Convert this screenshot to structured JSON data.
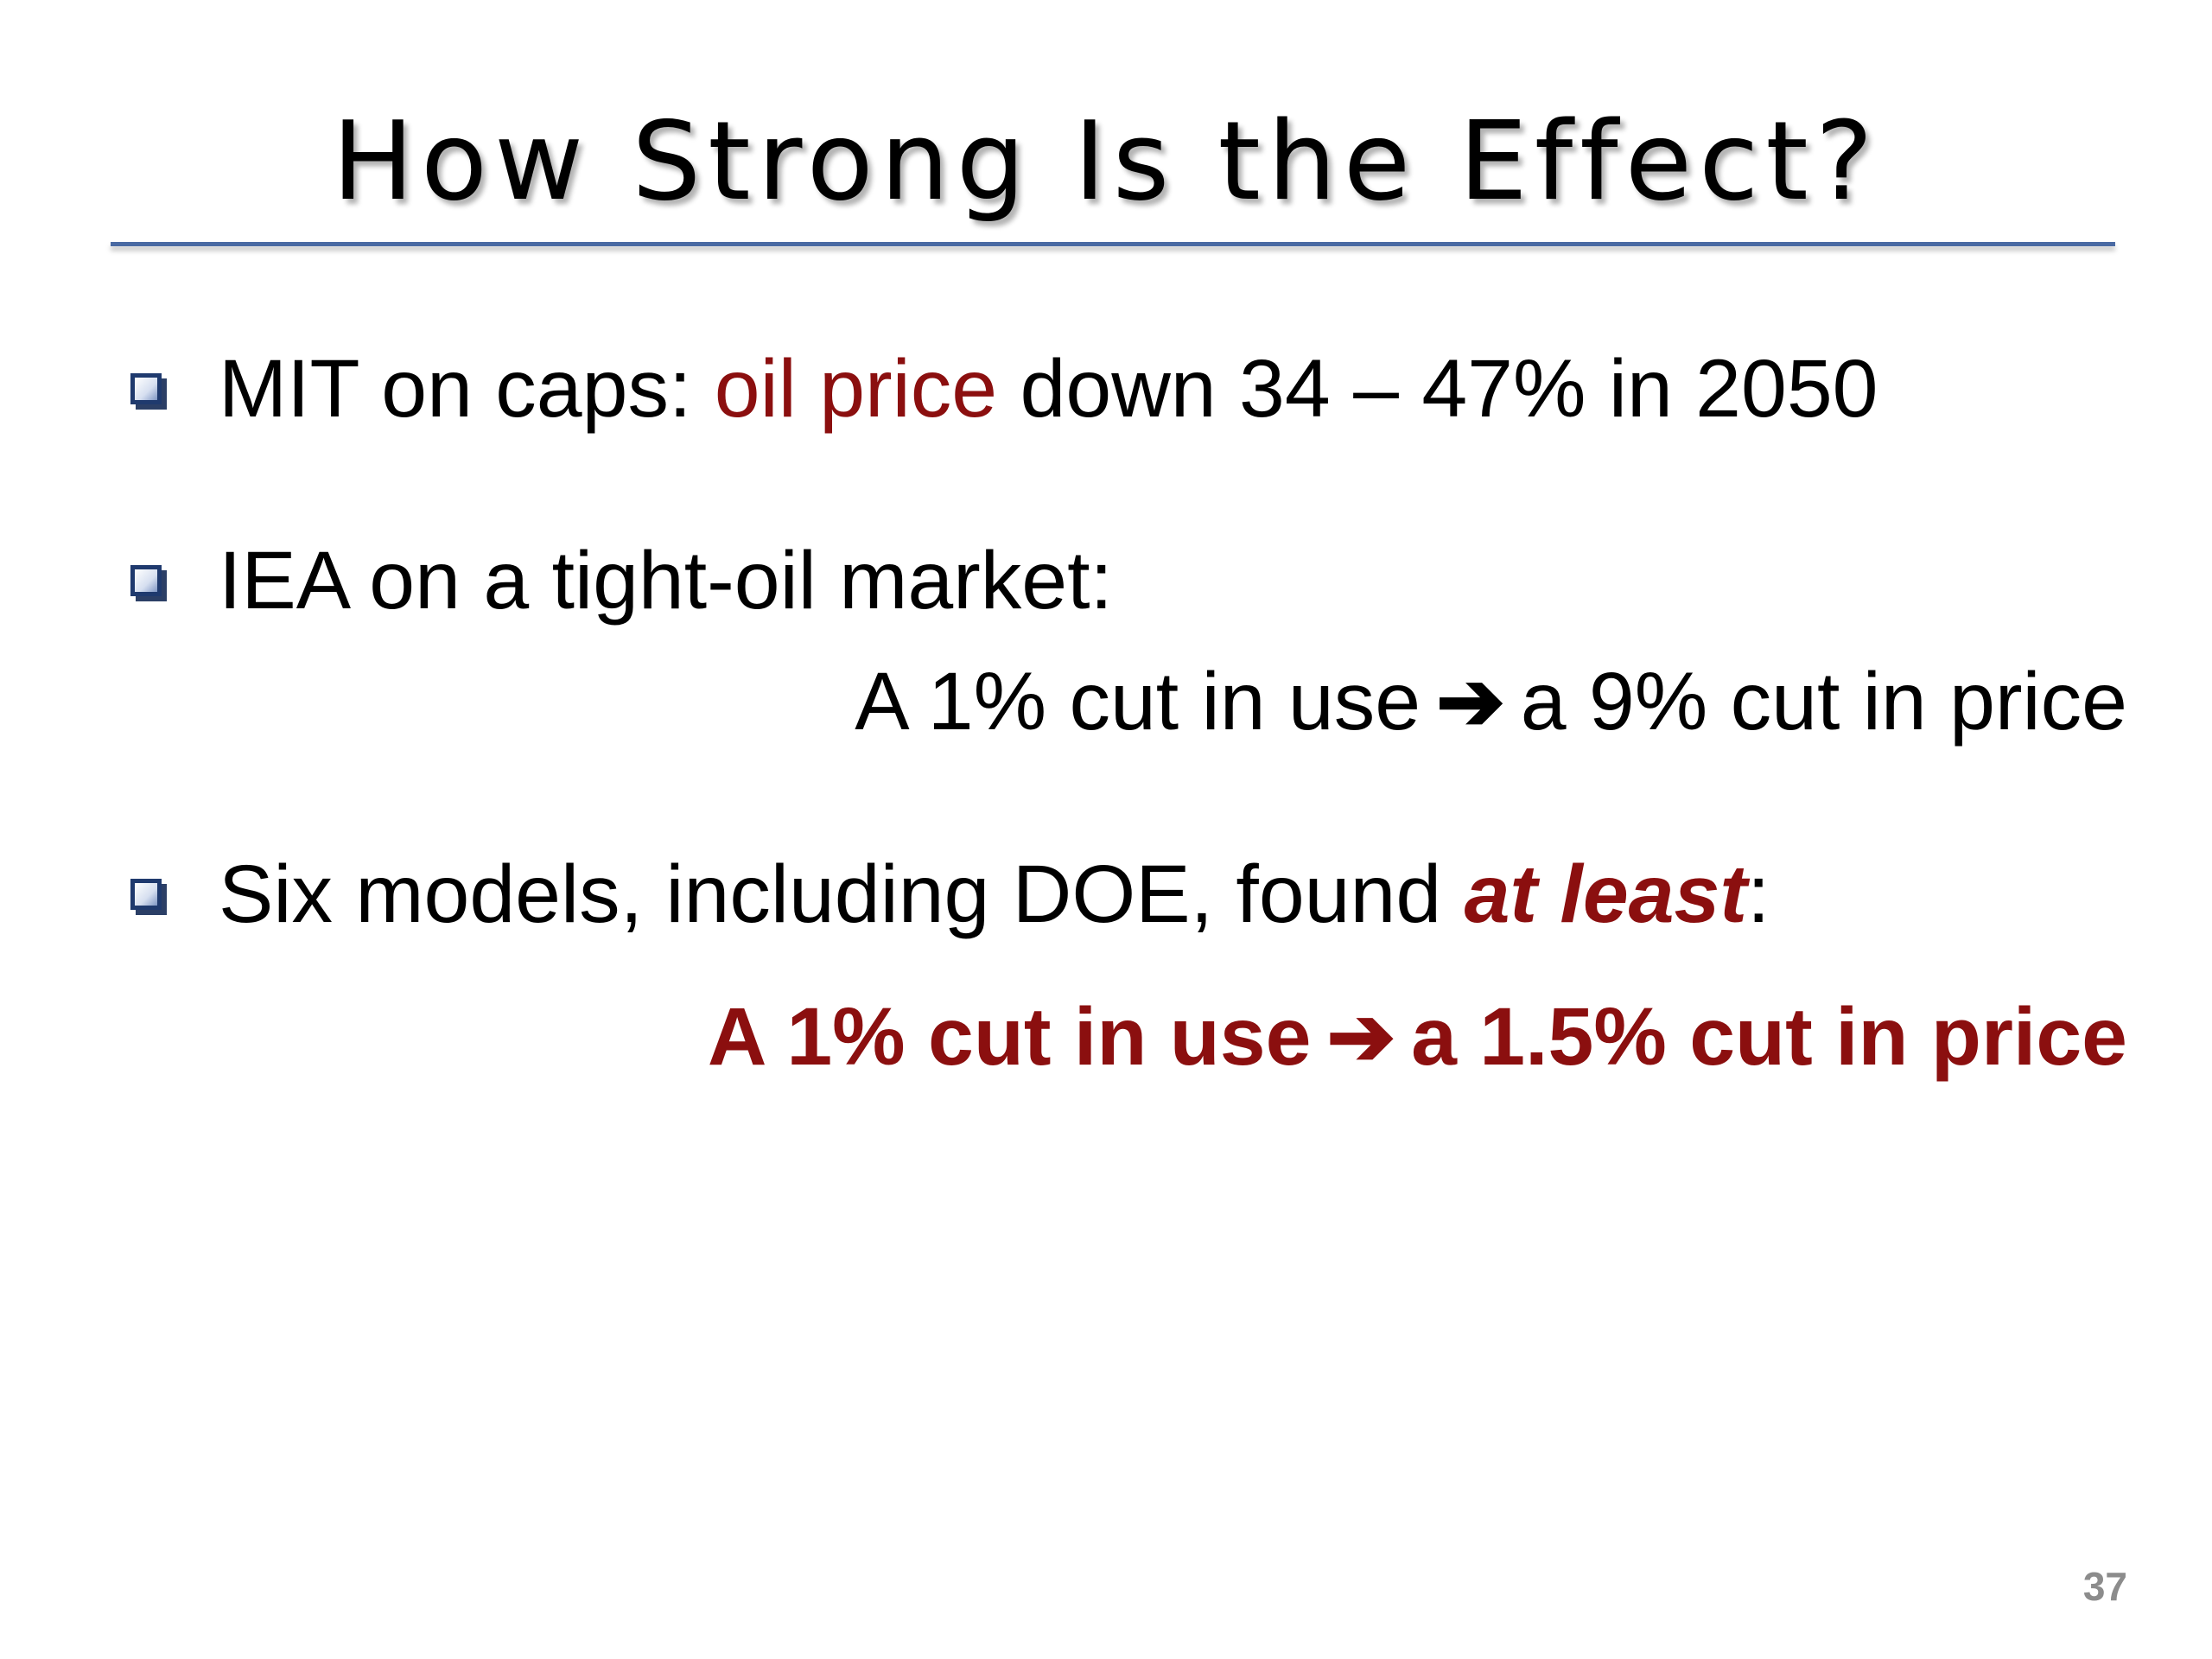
{
  "slide": {
    "title": "How Strong Is the Effect?",
    "bullets": [
      {
        "pre": "MIT on caps: ",
        "highlight": "oil price",
        "post": " down 34 – 47% in 2050"
      },
      {
        "text": "IEA on a tight-oil market:",
        "sub_left": "A 1% cut in use",
        "sub_arrow": "➔",
        "sub_right": "a 9% cut in price"
      },
      {
        "pre": "Six models, including DOE, found ",
        "emphasis": "at least",
        "post": ":",
        "sub_left": "A 1% cut in use",
        "sub_arrow": "➔",
        "sub_right": "a 1.5% cut in price"
      }
    ],
    "page_number": "37",
    "colors": {
      "accent_red": "#8b0f0f",
      "rule_blue": "#4a6aa3",
      "bullet_box": "#1f3a6e",
      "page_number_gray": "#8c8c8c"
    },
    "icons": {
      "bullet": "hollow-square-bullet-icon",
      "arrow": "right-arrow-icon"
    }
  }
}
